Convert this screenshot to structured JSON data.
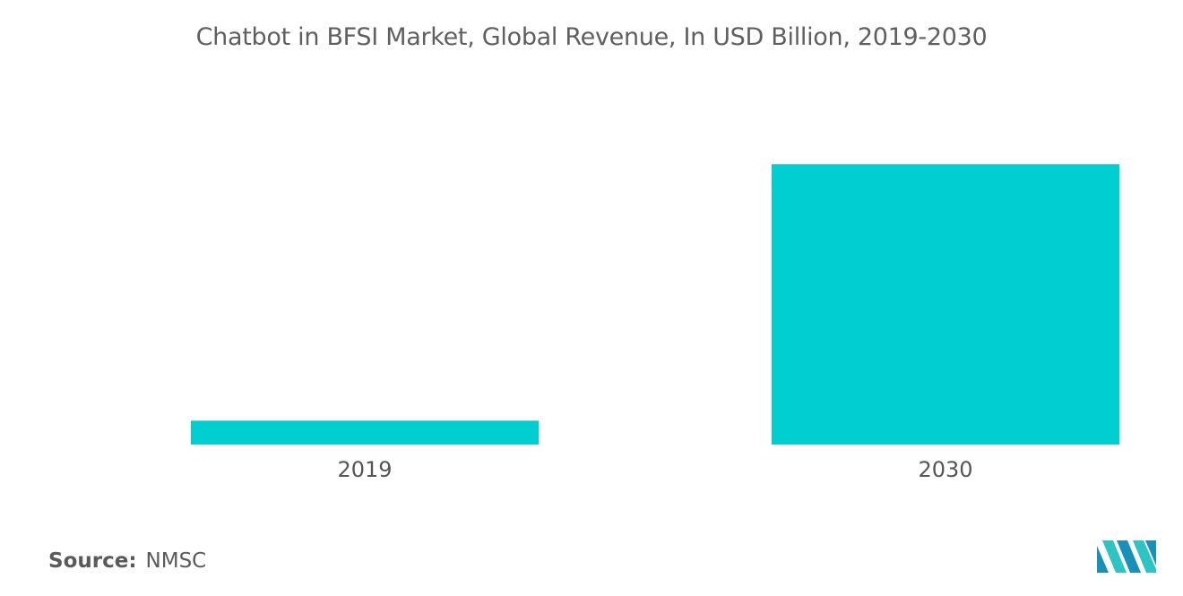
{
  "chart_data": {
    "type": "bar",
    "title": "Chatbot in BFSI Market, Global Revenue, In USD Billion, 2019-2030",
    "categories": [
      "2019",
      "2030"
    ],
    "values": [
      0.4,
      4.7
    ],
    "xlabel": "",
    "ylabel": "",
    "ylim": [
      0,
      5.5
    ],
    "grid": false,
    "legend": "none",
    "bar_color": "#00ced1"
  },
  "footer": {
    "source_label": "Source:",
    "source_value": "NMSC"
  },
  "logo": {
    "icon": "mordor-intelligence-logo-icon",
    "colors": [
      "#1a8fb8",
      "#2ec4c4"
    ]
  }
}
